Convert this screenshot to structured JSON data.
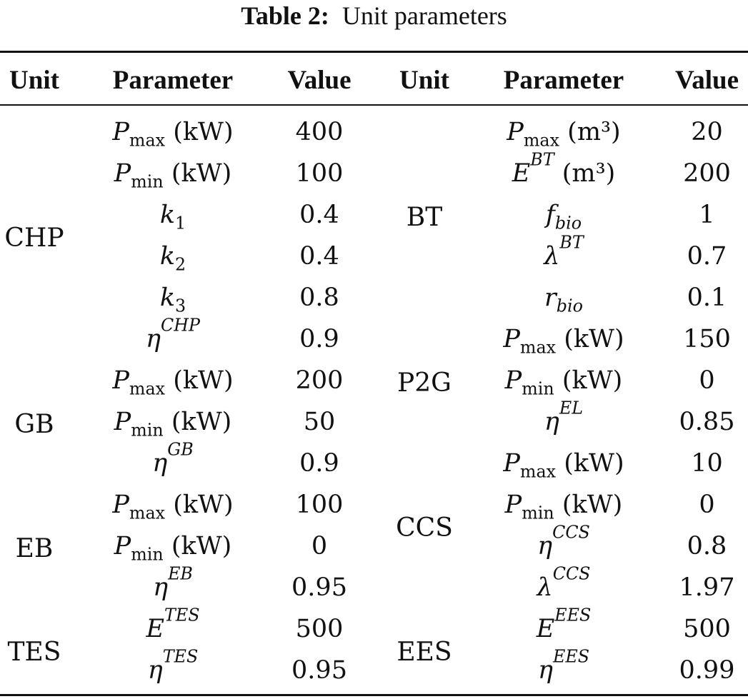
{
  "caption": {
    "label": "Table 2:",
    "title": "Unit parameters"
  },
  "headers": [
    "Unit",
    "Parameter",
    "Value",
    "Unit",
    "Parameter",
    "Value"
  ],
  "left_units": [
    {
      "name": "CHP",
      "rows": 6
    },
    {
      "name": "GB",
      "rows": 3
    },
    {
      "name": "EB",
      "rows": 3
    },
    {
      "name": "TES",
      "rows": 2
    }
  ],
  "right_units": [
    {
      "name": "BT",
      "rows": 5
    },
    {
      "name": "P2G",
      "rows": 3
    },
    {
      "name": "CCS",
      "rows": 4
    },
    {
      "name": "EES",
      "rows": 2
    }
  ],
  "left_rows": [
    {
      "sym": "P",
      "sub": "max",
      "sub_upright": true,
      "unit": "(kW)",
      "value": "400"
    },
    {
      "sym": "P",
      "sub": "min",
      "sub_upright": true,
      "unit": "(kW)",
      "value": "100"
    },
    {
      "sym": "k",
      "sub": "1",
      "sub_upright": true,
      "value": "0.4"
    },
    {
      "sym": "k",
      "sub": "2",
      "sub_upright": true,
      "value": "0.4"
    },
    {
      "sym": "k",
      "sub": "3",
      "sub_upright": true,
      "value": "0.8"
    },
    {
      "sym": "η",
      "sup": "CHP",
      "value": "0.9"
    },
    {
      "sym": "P",
      "sub": "max",
      "sub_upright": true,
      "unit": "(kW)",
      "value": "200"
    },
    {
      "sym": "P",
      "sub": "min",
      "sub_upright": true,
      "unit": "(kW)",
      "value": "50"
    },
    {
      "sym": "η",
      "sup": "GB",
      "value": "0.9"
    },
    {
      "sym": "P",
      "sub": "max",
      "sub_upright": true,
      "unit": "(kW)",
      "value": "100"
    },
    {
      "sym": "P",
      "sub": "min",
      "sub_upright": true,
      "unit": "(kW)",
      "value": "0"
    },
    {
      "sym": "η",
      "sup": "EB",
      "value": "0.95"
    },
    {
      "sym": "E",
      "sup": "TES",
      "value": "500"
    },
    {
      "sym": "η",
      "sup": "TES",
      "value": "0.95"
    }
  ],
  "right_rows": [
    {
      "sym": "P",
      "sub": "max",
      "sub_upright": true,
      "unit": "(m³)",
      "value": "20"
    },
    {
      "sym": "E",
      "sup": "BT",
      "unit": "(m³)",
      "value": "200"
    },
    {
      "sym": "f",
      "sub": "bio",
      "value": "1"
    },
    {
      "sym": "λ",
      "sup": "BT",
      "value": "0.7"
    },
    {
      "sym": "r",
      "sub": "bio",
      "value": "0.1"
    },
    {
      "sym": "P",
      "sub": "max",
      "sub_upright": true,
      "unit": "(kW)",
      "value": "150"
    },
    {
      "sym": "P",
      "sub": "min",
      "sub_upright": true,
      "unit": "(kW)",
      "value": "0"
    },
    {
      "sym": "η",
      "sup": "EL",
      "value": "0.85"
    },
    {
      "sym": "P",
      "sub": "max",
      "sub_upright": true,
      "unit": "(kW)",
      "value": "10"
    },
    {
      "sym": "P",
      "sub": "min",
      "sub_upright": true,
      "unit": "(kW)",
      "value": "0"
    },
    {
      "sym": "η",
      "sup": "CCS",
      "value": "0.8"
    },
    {
      "sym": "λ",
      "sup": "CCS",
      "value": "1.97"
    },
    {
      "sym": "E",
      "sup": "EES",
      "value": "500"
    },
    {
      "sym": "η",
      "sup": "EES",
      "value": "0.99"
    }
  ]
}
